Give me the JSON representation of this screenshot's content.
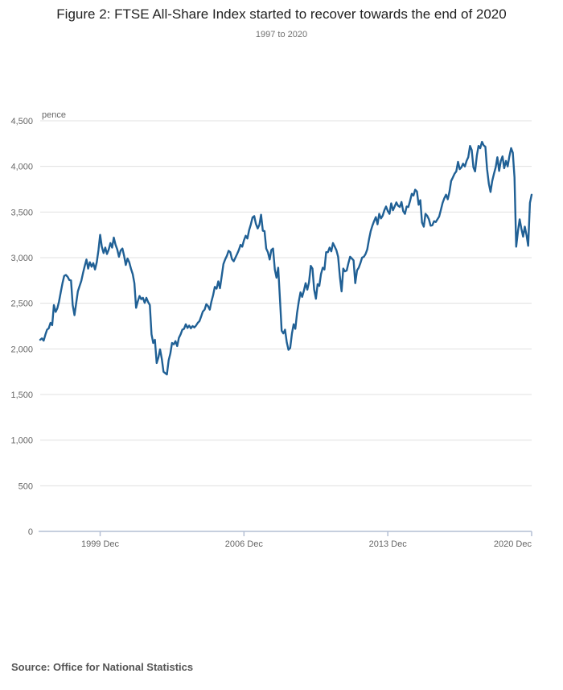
{
  "header": {
    "title": "Figure 2: FTSE All-Share Index started to recover towards the end of 2020",
    "subtitle": "1997 to 2020"
  },
  "source": {
    "label": "Source: Office for National Statistics"
  },
  "chart_data": {
    "type": "line",
    "title": "Figure 2: FTSE All-Share Index started to recover towards the end of 2020",
    "subtitle": "1997 to 2020",
    "unit_label": "pence",
    "frequency": "monthly",
    "x_start": "1997 Jan",
    "x_end": "2020 Dec",
    "x_tick_labels": [
      "1999 Dec",
      "2006 Dec",
      "2013 Dec",
      "2020 Dec"
    ],
    "x_tick_indices": [
      35,
      119,
      203,
      287
    ],
    "y_ticks": [
      0,
      500,
      1000,
      1500,
      2000,
      2500,
      3000,
      3500,
      4000,
      4500
    ],
    "y_tick_labels": [
      "0",
      "500",
      "1,000",
      "1,500",
      "2,000",
      "2,500",
      "3,000",
      "3,500",
      "4,000",
      "4,500"
    ],
    "ylim": [
      0,
      4500
    ],
    "grid": "horizontal",
    "legend": "none",
    "colors": {
      "line": "#206095",
      "grid": "#e0e0e0",
      "axis": "#b4bfd4",
      "tick_label": "#666666"
    },
    "series": [
      {
        "name": "FTSE All-Share Index",
        "values": [
          2100,
          2115,
          2090,
          2155,
          2210,
          2225,
          2285,
          2260,
          2480,
          2405,
          2445,
          2520,
          2620,
          2720,
          2800,
          2810,
          2790,
          2755,
          2750,
          2480,
          2370,
          2500,
          2630,
          2690,
          2745,
          2830,
          2910,
          2980,
          2880,
          2950,
          2900,
          2940,
          2870,
          2950,
          3080,
          3250,
          3120,
          3050,
          3110,
          3040,
          3090,
          3160,
          3110,
          3220,
          3140,
          3090,
          3010,
          3080,
          3100,
          3020,
          2920,
          2990,
          2950,
          2880,
          2820,
          2720,
          2450,
          2520,
          2580,
          2545,
          2560,
          2505,
          2560,
          2515,
          2480,
          2160,
          2065,
          2100,
          1845,
          1905,
          1995,
          1890,
          1750,
          1735,
          1720,
          1875,
          1950,
          2065,
          2050,
          2085,
          2030,
          2120,
          2160,
          2210,
          2220,
          2270,
          2230,
          2255,
          2225,
          2250,
          2235,
          2255,
          2285,
          2305,
          2355,
          2410,
          2430,
          2490,
          2470,
          2430,
          2520,
          2590,
          2680,
          2660,
          2740,
          2665,
          2800,
          2930,
          2980,
          3020,
          3075,
          3060,
          2985,
          2960,
          3000,
          3040,
          3085,
          3140,
          3120,
          3190,
          3240,
          3210,
          3300,
          3365,
          3440,
          3455,
          3370,
          3320,
          3360,
          3470,
          3295,
          3290,
          3100,
          3060,
          2980,
          3085,
          3100,
          2870,
          2780,
          2890,
          2560,
          2200,
          2170,
          2210,
          2070,
          1990,
          2010,
          2170,
          2270,
          2220,
          2390,
          2520,
          2620,
          2570,
          2640,
          2720,
          2650,
          2730,
          2910,
          2880,
          2650,
          2550,
          2710,
          2690,
          2820,
          2890,
          2870,
          3060,
          3060,
          3110,
          3070,
          3160,
          3120,
          3080,
          3010,
          2790,
          2630,
          2880,
          2850,
          2860,
          2940,
          3010,
          2990,
          2970,
          2720,
          2860,
          2890,
          2940,
          3000,
          3010,
          3040,
          3090,
          3200,
          3290,
          3350,
          3400,
          3445,
          3365,
          3480,
          3430,
          3460,
          3520,
          3560,
          3510,
          3480,
          3595,
          3520,
          3560,
          3605,
          3570,
          3555,
          3610,
          3510,
          3480,
          3560,
          3555,
          3620,
          3700,
          3680,
          3745,
          3725,
          3580,
          3630,
          3385,
          3340,
          3480,
          3460,
          3420,
          3350,
          3355,
          3400,
          3390,
          3420,
          3450,
          3525,
          3600,
          3650,
          3690,
          3640,
          3720,
          3840,
          3880,
          3920,
          3945,
          4050,
          3970,
          3990,
          4030,
          4000,
          4060,
          4100,
          4225,
          4180,
          3990,
          3945,
          4120,
          4225,
          4200,
          4270,
          4230,
          4215,
          3970,
          3810,
          3720,
          3840,
          3920,
          3990,
          4100,
          3950,
          4060,
          4110,
          3980,
          4060,
          4000,
          4110,
          4200,
          4150,
          3880,
          3120,
          3290,
          3420,
          3320,
          3230,
          3340,
          3250,
          3130,
          3600,
          3690
        ]
      }
    ]
  }
}
